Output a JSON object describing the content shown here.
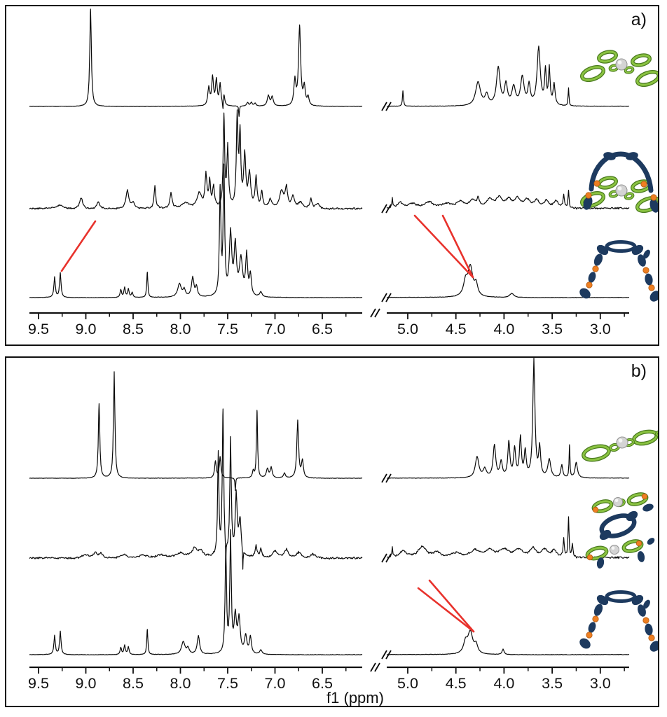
{
  "figure": {
    "panel_a_label": "a)",
    "panel_b_label": "b)",
    "xlabel": "f1 (ppm)"
  },
  "colors": {
    "trace": "#0a0a0a",
    "axis": "#101010",
    "red_line": "#e8322c",
    "green": "#8ac341",
    "green_dark": "#4a7a1f",
    "navy": "#1d3a5f",
    "orange": "#ee7f22",
    "orange_dark": "#b35a10",
    "metal_gray": "#d4d4d4",
    "metal_edge": "#939393"
  },
  "chart_data": {
    "type": "line",
    "title": "Stacked 1H NMR spectra with peak-correlation lines, panels a) and b)",
    "xlabel": "f1 (ppm)",
    "x_axis_reversed": true,
    "x_ticks_left": [
      9.5,
      9.0,
      8.5,
      8.0,
      7.5,
      7.0,
      6.5
    ],
    "x_ticks_right": [
      5.0,
      4.5,
      4.0,
      3.5,
      3.0
    ],
    "minor_tick_step": 0.25,
    "axis_break_ppm": [
      6.1,
      5.2
    ],
    "panels": [
      {
        "label": "a)",
        "spectra": [
          {
            "name": "top-free-green-macrocycle",
            "molecule": "cross4",
            "noise": 0.4,
            "peaks": [
              [
                8.95,
                139,
                0.01
              ],
              [
                7.7,
                26,
                0.012
              ],
              [
                7.66,
                40,
                0.011
              ],
              [
                7.62,
                36,
                0.011
              ],
              [
                7.58,
                30,
                0.01
              ],
              [
                7.55,
                -16,
                0.004
              ],
              [
                7.54,
                16,
                0.01
              ],
              [
                7.38,
                -15,
                0.004
              ],
              [
                7.29,
                5,
                0.012
              ],
              [
                7.25,
                5,
                0.012
              ],
              [
                7.21,
                4,
                0.012
              ],
              [
                7.07,
                15,
                0.014
              ],
              [
                7.03,
                13,
                0.014
              ],
              [
                6.79,
                36,
                0.012
              ],
              [
                6.74,
                113,
                0.013
              ],
              [
                6.69,
                26,
                0.012
              ],
              [
                6.65,
                12,
                0.012
              ],
              [
                5.05,
                22,
                0.006
              ],
              [
                4.27,
                34,
                0.03
              ],
              [
                4.18,
                15,
                0.02
              ],
              [
                4.06,
                54,
                0.022
              ],
              [
                3.98,
                30,
                0.018
              ],
              [
                3.9,
                26,
                0.022
              ],
              [
                3.81,
                40,
                0.022
              ],
              [
                3.74,
                28,
                0.015
              ],
              [
                3.64,
                83,
                0.02
              ],
              [
                3.57,
                48,
                0.01
              ],
              [
                3.53,
                52,
                0.01
              ],
              [
                3.48,
                30,
                0.012
              ],
              [
                3.33,
                26,
                0.005
              ]
            ]
          },
          {
            "name": "middle-mixture-adduct",
            "molecule": "interlocked",
            "noise": 1.6,
            "peaks": [
              [
                9.28,
                5,
                0.04
              ],
              [
                9.05,
                15,
                0.02
              ],
              [
                8.87,
                10,
                0.018
              ],
              [
                8.56,
                26,
                0.018
              ],
              [
                8.5,
                8,
                0.02
              ],
              [
                8.27,
                33,
                0.01
              ],
              [
                8.1,
                22,
                0.013
              ],
              [
                7.95,
                7,
                0.04
              ],
              [
                7.8,
                20,
                0.03
              ],
              [
                7.73,
                46,
                0.012
              ],
              [
                7.69,
                36,
                0.01
              ],
              [
                7.65,
                28,
                0.012
              ],
              [
                7.54,
                130,
                0.009
              ],
              [
                7.5,
                85,
                0.01
              ],
              [
                7.4,
                126,
                0.01
              ],
              [
                7.37,
                100,
                0.01
              ],
              [
                7.32,
                72,
                0.013
              ],
              [
                7.27,
                48,
                0.015
              ],
              [
                7.2,
                42,
                0.012
              ],
              [
                7.14,
                22,
                0.012
              ],
              [
                7.05,
                12,
                0.02
              ],
              [
                6.93,
                24,
                0.025
              ],
              [
                6.88,
                28,
                0.015
              ],
              [
                6.81,
                16,
                0.02
              ],
              [
                6.73,
                8,
                0.03
              ],
              [
                6.62,
                13,
                0.015
              ],
              [
                6.55,
                7,
                0.02
              ],
              [
                5.16,
                13,
                0.005
              ],
              [
                5.08,
                8,
                0.03
              ],
              [
                4.95,
                6,
                0.05
              ],
              [
                4.78,
                8,
                0.05
              ],
              [
                4.6,
                6,
                0.06
              ],
              [
                4.45,
                9,
                0.05
              ],
              [
                4.33,
                11,
                0.03
              ],
              [
                4.27,
                13,
                0.015
              ],
              [
                4.15,
                12,
                0.04
              ],
              [
                4.05,
                14,
                0.04
              ],
              [
                3.95,
                12,
                0.04
              ],
              [
                3.86,
                13,
                0.03
              ],
              [
                3.76,
                12,
                0.04
              ],
              [
                3.66,
                11,
                0.03
              ],
              [
                3.56,
                10,
                0.03
              ],
              [
                3.46,
                10,
                0.03
              ],
              [
                3.38,
                18,
                0.008
              ],
              [
                3.33,
                26,
                0.006
              ]
            ]
          },
          {
            "name": "bottom-free-tweezer",
            "molecule": "tweezer",
            "noise": 0.45,
            "peaks": [
              [
                9.33,
                29,
                0.009
              ],
              [
                9.27,
                35,
                0.009
              ],
              [
                8.63,
                11,
                0.009
              ],
              [
                8.59,
                14,
                0.009
              ],
              [
                8.55,
                12,
                0.009
              ],
              [
                8.51,
                7,
                0.009
              ],
              [
                8.35,
                36,
                0.007
              ],
              [
                8.01,
                19,
                0.022
              ],
              [
                7.96,
                10,
                0.015
              ],
              [
                7.87,
                28,
                0.015
              ],
              [
                7.83,
                14,
                0.012
              ],
              [
                7.58,
                150,
                0.009
              ],
              [
                7.54,
                178,
                0.009
              ],
              [
                7.47,
                88,
                0.015
              ],
              [
                7.42,
                70,
                0.015
              ],
              [
                7.36,
                52,
                0.02
              ],
              [
                7.3,
                58,
                0.012
              ],
              [
                7.26,
                30,
                0.012
              ],
              [
                7.15,
                7,
                0.015
              ],
              [
                4.4,
                20,
                0.025
              ],
              [
                4.35,
                42,
                0.03
              ],
              [
                4.29,
                16,
                0.02
              ],
              [
                3.92,
                6,
                0.025
              ]
            ]
          }
        ],
        "red_lines": [
          [
            136,
            316,
            88,
            387
          ],
          [
            592,
            308,
            675,
            396
          ],
          [
            632,
            308,
            675,
            396
          ]
        ]
      },
      {
        "label": "b)",
        "spectra": [
          {
            "name": "top-free-green-ligand",
            "molecule": "linear2",
            "noise": 0.4,
            "peaks": [
              [
                8.86,
                106,
                0.009
              ],
              [
                8.7,
                152,
                0.009
              ],
              [
                7.63,
                24,
                0.01
              ],
              [
                7.58,
                30,
                0.01
              ],
              [
                7.42,
                -18,
                0.004
              ],
              [
                7.23,
                10,
                0.01
              ],
              [
                7.19,
                96,
                0.007
              ],
              [
                7.08,
                13,
                0.014
              ],
              [
                7.04,
                15,
                0.012
              ],
              [
                6.9,
                7,
                0.012
              ],
              [
                6.76,
                82,
                0.011
              ],
              [
                6.71,
                24,
                0.012
              ],
              [
                4.28,
                30,
                0.022
              ],
              [
                4.2,
                12,
                0.02
              ],
              [
                4.1,
                46,
                0.016
              ],
              [
                4.03,
                22,
                0.015
              ],
              [
                3.95,
                50,
                0.013
              ],
              [
                3.89,
                40,
                0.013
              ],
              [
                3.83,
                56,
                0.012
              ],
              [
                3.78,
                36,
                0.012
              ],
              [
                3.69,
                168,
                0.013
              ],
              [
                3.63,
                42,
                0.012
              ],
              [
                3.53,
                26,
                0.018
              ],
              [
                3.4,
                18,
                0.012
              ],
              [
                3.32,
                46,
                0.005
              ],
              [
                3.25,
                22,
                0.015
              ]
            ]
          },
          {
            "name": "middle-mixture-sandwich",
            "molecule": "sandwich",
            "noise": 1.8,
            "peaks": [
              [
                9.0,
                5,
                0.04
              ],
              [
                8.9,
                8,
                0.025
              ],
              [
                8.84,
                6,
                0.02
              ],
              [
                8.6,
                5,
                0.04
              ],
              [
                8.4,
                4,
                0.05
              ],
              [
                8.2,
                4,
                0.05
              ],
              [
                8.0,
                6,
                0.05
              ],
              [
                7.85,
                13,
                0.03
              ],
              [
                7.78,
                8,
                0.03
              ],
              [
                7.6,
                145,
                0.008
              ],
              [
                7.55,
                205,
                0.009
              ],
              [
                7.52,
                -28,
                0.003
              ],
              [
                7.47,
                165,
                0.009
              ],
              [
                7.41,
                85,
                0.012
              ],
              [
                7.37,
                50,
                0.015
              ],
              [
                7.34,
                -30,
                0.003
              ],
              [
                7.2,
                16,
                0.012
              ],
              [
                7.15,
                12,
                0.012
              ],
              [
                7.0,
                10,
                0.03
              ],
              [
                6.88,
                12,
                0.025
              ],
              [
                6.75,
                8,
                0.03
              ],
              [
                6.6,
                6,
                0.03
              ],
              [
                5.16,
                13,
                0.005
              ],
              [
                5.05,
                9,
                0.04
              ],
              [
                4.85,
                15,
                0.05
              ],
              [
                4.7,
                7,
                0.04
              ],
              [
                4.5,
                6,
                0.06
              ],
              [
                4.3,
                10,
                0.06
              ],
              [
                4.15,
                10,
                0.05
              ],
              [
                4.0,
                12,
                0.06
              ],
              [
                3.85,
                11,
                0.05
              ],
              [
                3.7,
                13,
                0.04
              ],
              [
                3.58,
                11,
                0.04
              ],
              [
                3.48,
                10,
                0.03
              ],
              [
                3.38,
                26,
                0.007
              ],
              [
                3.33,
                58,
                0.006
              ],
              [
                3.29,
                18,
                0.008
              ]
            ]
          },
          {
            "name": "bottom-free-tweezer",
            "molecule": "tweezer",
            "noise": 0.45,
            "peaks": [
              [
                9.33,
                27,
                0.009
              ],
              [
                9.27,
                33,
                0.009
              ],
              [
                8.63,
                10,
                0.009
              ],
              [
                8.59,
                13,
                0.009
              ],
              [
                8.55,
                11,
                0.009
              ],
              [
                8.35,
                36,
                0.007
              ],
              [
                7.97,
                18,
                0.022
              ],
              [
                7.92,
                8,
                0.015
              ],
              [
                7.81,
                26,
                0.015
              ],
              [
                7.52,
                148,
                0.009
              ],
              [
                7.47,
                168,
                0.009
              ],
              [
                7.42,
                52,
                0.015
              ],
              [
                7.38,
                48,
                0.015
              ],
              [
                7.31,
                25,
                0.015
              ],
              [
                7.26,
                24,
                0.012
              ],
              [
                7.15,
                6,
                0.015
              ],
              [
                4.4,
                16,
                0.025
              ],
              [
                4.35,
                31,
                0.03
              ],
              [
                4.29,
                12,
                0.02
              ],
              [
                4.01,
                8,
                0.012
              ]
            ]
          }
        ],
        "red_lines": [
          [
            613,
            829,
            676,
            902
          ],
          [
            597,
            840,
            676,
            902
          ]
        ]
      }
    ]
  }
}
